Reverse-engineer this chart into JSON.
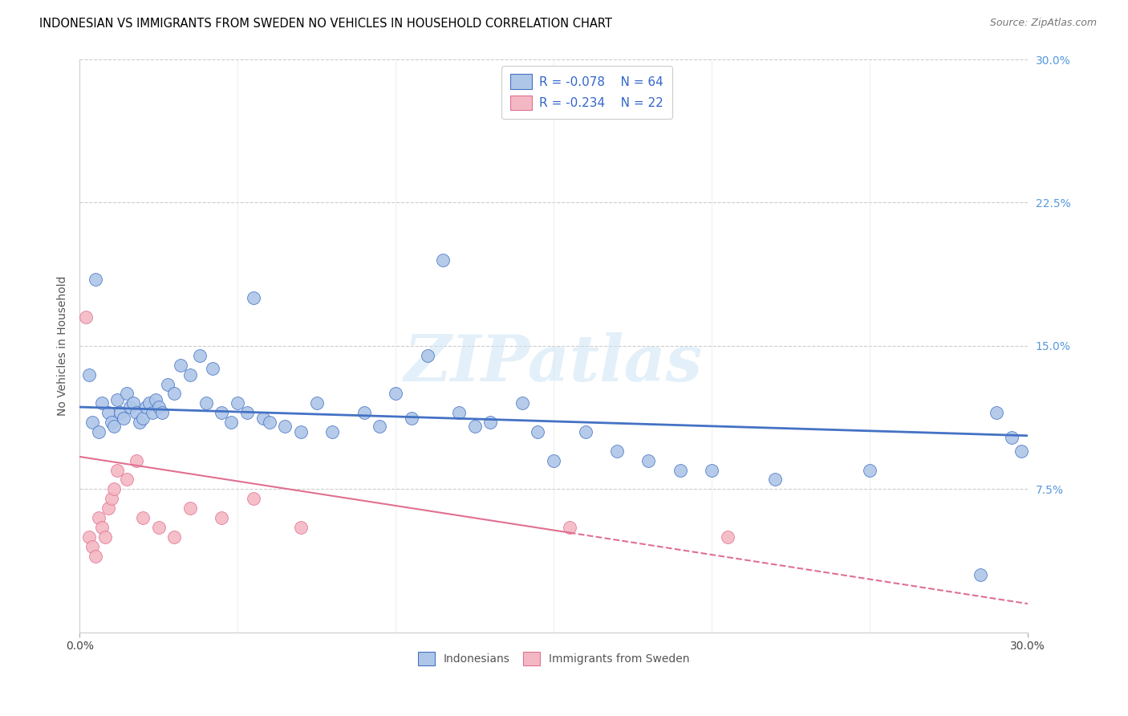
{
  "title": "INDONESIAN VS IMMIGRANTS FROM SWEDEN NO VEHICLES IN HOUSEHOLD CORRELATION CHART",
  "source": "Source: ZipAtlas.com",
  "ylabel_label": "No Vehicles in Household",
  "right_yticks": [
    7.5,
    15.0,
    22.5,
    30.0
  ],
  "right_ytick_labels": [
    "7.5%",
    "15.0%",
    "22.5%",
    "30.0%"
  ],
  "xlim": [
    0.0,
    30.0
  ],
  "ylim": [
    0.0,
    30.0
  ],
  "blue_color": "#aec6e8",
  "pink_color": "#f4b8c4",
  "blue_line_color": "#4472c4",
  "pink_line_color": "#e07090",
  "legend_R1": "-0.078",
  "legend_N1": "64",
  "legend_R2": "-0.234",
  "legend_N2": "22",
  "watermark_text": "ZIPatlas",
  "blue_line_y0": 11.8,
  "blue_line_y1": 10.3,
  "pink_line_y0": 9.2,
  "pink_line_y1": 1.5,
  "pink_solid_x_end": 15.5,
  "blue_x": [
    0.3,
    0.5,
    0.7,
    0.9,
    1.0,
    1.1,
    1.2,
    1.3,
    1.4,
    1.5,
    1.6,
    1.7,
    1.8,
    1.9,
    2.0,
    2.1,
    2.2,
    2.3,
    2.4,
    2.5,
    2.6,
    2.8,
    3.0,
    3.2,
    3.5,
    3.8,
    4.0,
    4.2,
    4.5,
    4.8,
    5.0,
    5.3,
    5.5,
    5.8,
    6.0,
    6.5,
    7.0,
    7.5,
    8.0,
    9.0,
    9.5,
    10.0,
    10.5,
    11.0,
    11.5,
    12.0,
    12.5,
    13.0,
    14.0,
    14.5,
    15.0,
    16.0,
    17.0,
    18.0,
    19.0,
    20.0,
    22.0,
    25.0,
    28.5,
    29.0,
    29.5,
    29.8,
    0.4,
    0.6
  ],
  "blue_y": [
    13.5,
    18.5,
    12.0,
    11.5,
    11.0,
    10.8,
    12.2,
    11.5,
    11.2,
    12.5,
    11.8,
    12.0,
    11.5,
    11.0,
    11.2,
    11.8,
    12.0,
    11.5,
    12.2,
    11.8,
    11.5,
    13.0,
    12.5,
    14.0,
    13.5,
    14.5,
    12.0,
    13.8,
    11.5,
    11.0,
    12.0,
    11.5,
    17.5,
    11.2,
    11.0,
    10.8,
    10.5,
    12.0,
    10.5,
    11.5,
    10.8,
    12.5,
    11.2,
    14.5,
    19.5,
    11.5,
    10.8,
    11.0,
    12.0,
    10.5,
    9.0,
    10.5,
    9.5,
    9.0,
    8.5,
    8.5,
    8.0,
    8.5,
    3.0,
    11.5,
    10.2,
    9.5,
    11.0,
    10.5
  ],
  "pink_x": [
    0.2,
    0.3,
    0.4,
    0.5,
    0.6,
    0.7,
    0.8,
    0.9,
    1.0,
    1.1,
    1.2,
    1.5,
    1.8,
    2.0,
    2.5,
    3.0,
    3.5,
    4.5,
    5.5,
    7.0,
    15.5,
    20.5
  ],
  "pink_y": [
    16.5,
    5.0,
    4.5,
    4.0,
    6.0,
    5.5,
    5.0,
    6.5,
    7.0,
    7.5,
    8.5,
    8.0,
    9.0,
    6.0,
    5.5,
    5.0,
    6.5,
    6.0,
    7.0,
    5.5,
    5.5,
    5.0
  ]
}
